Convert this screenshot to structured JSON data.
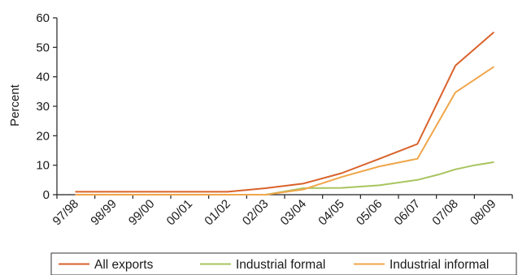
{
  "chart_data": {
    "type": "line",
    "title": "",
    "xlabel": "",
    "ylabel": "Percent",
    "ylim": [
      0,
      60
    ],
    "yticks": [
      0,
      10,
      20,
      30,
      40,
      50,
      60
    ],
    "grid": false,
    "legend_position": "bottom",
    "categories": [
      "97/98",
      "98/99",
      "99/00",
      "00/01",
      "01/02",
      "02/03",
      "03/04",
      "04/05",
      "05/06",
      "06/07",
      "07/08",
      "08/09"
    ],
    "series": [
      {
        "name": "All exports",
        "color": "#d9622b",
        "points": [
          [
            0,
            1
          ],
          [
            1,
            1
          ],
          [
            2,
            1
          ],
          [
            3,
            1
          ],
          [
            4,
            1
          ],
          [
            5,
            2.2
          ],
          [
            6,
            3.8
          ],
          [
            7,
            7.3
          ],
          [
            8,
            12.2
          ],
          [
            9,
            17.2
          ],
          [
            10,
            43.8
          ],
          [
            11,
            55
          ]
        ]
      },
      {
        "name": "Industrial formal",
        "color": "#a8c45e",
        "points": [
          [
            0,
            0
          ],
          [
            1,
            0
          ],
          [
            2,
            0
          ],
          [
            3,
            0
          ],
          [
            4,
            0
          ],
          [
            5,
            0
          ],
          [
            6,
            2.2
          ],
          [
            7,
            2.3
          ],
          [
            8,
            3.2
          ],
          [
            9,
            5
          ],
          [
            9.6,
            7
          ],
          [
            10,
            8.6
          ],
          [
            10.5,
            10
          ],
          [
            11,
            11
          ]
        ]
      },
      {
        "name": "Industrial informal",
        "color": "#f0a64a",
        "points": [
          [
            0,
            0
          ],
          [
            1,
            0
          ],
          [
            2,
            0
          ],
          [
            3,
            0
          ],
          [
            4,
            0
          ],
          [
            5,
            0
          ],
          [
            6,
            1.8
          ],
          [
            7,
            6
          ],
          [
            8,
            9.6
          ],
          [
            9,
            12.2
          ],
          [
            10,
            34.7
          ],
          [
            11,
            43.3
          ]
        ]
      }
    ]
  }
}
